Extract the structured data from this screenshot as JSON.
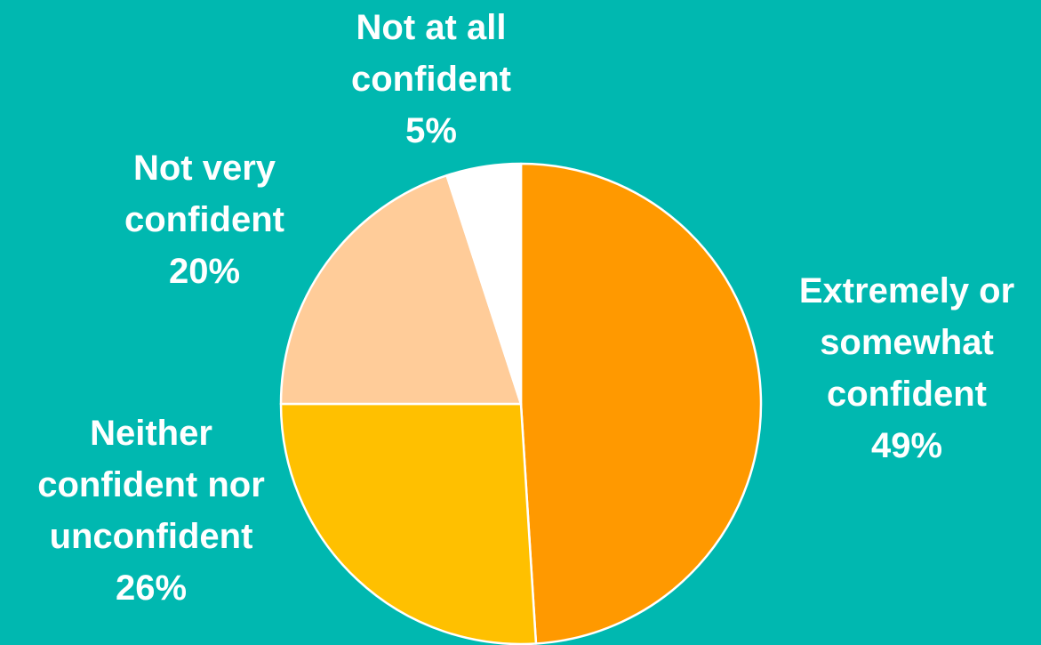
{
  "chart_data": {
    "type": "pie",
    "title": "",
    "slices": [
      {
        "label_lines": [
          "Extremely or",
          "somewhat",
          "confident"
        ],
        "value": 49,
        "value_label": "49%",
        "color": "#ff9900"
      },
      {
        "label_lines": [
          "Neither",
          "confident nor",
          "unconfident"
        ],
        "value": 26,
        "value_label": "26%",
        "color": "#ffc000"
      },
      {
        "label_lines": [
          "Not very",
          "confident"
        ],
        "value": 20,
        "value_label": "20%",
        "color": "#ffcc99"
      },
      {
        "label_lines": [
          "Not at all",
          "confident"
        ],
        "value": 5,
        "value_label": "5%",
        "color": "#ffffff"
      }
    ],
    "start_angle": "12 o'clock",
    "direction": "clockwise",
    "slice_border_color": "#ffffff",
    "background_color": "#00b8b0",
    "legend": "none"
  }
}
